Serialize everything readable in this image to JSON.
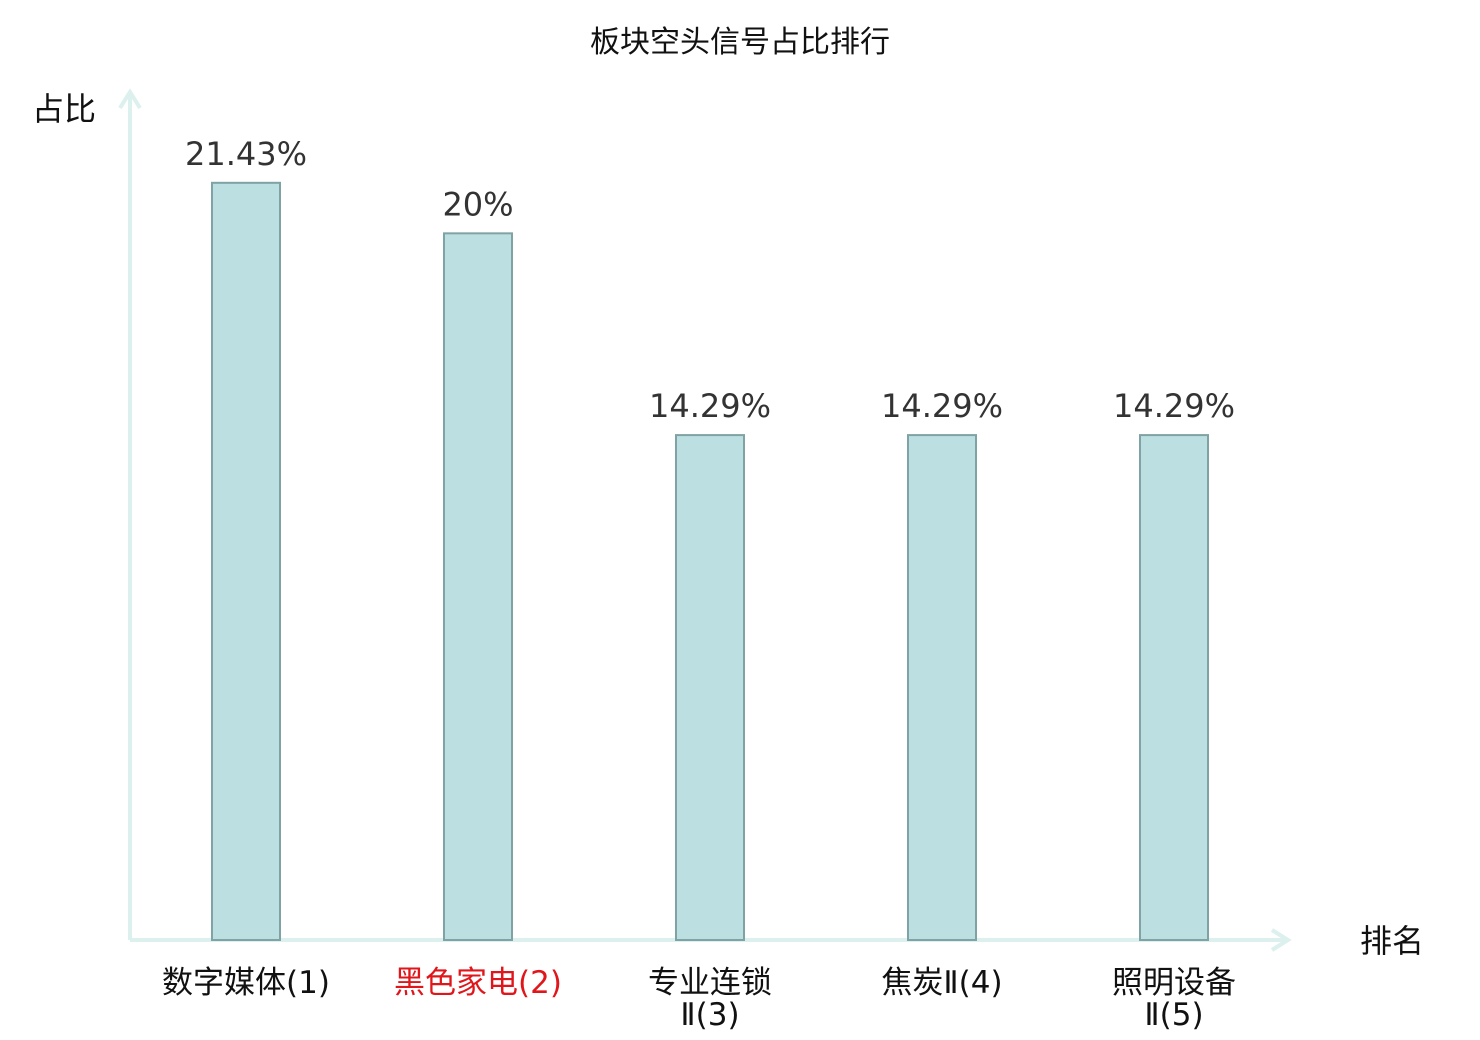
{
  "chart_data": {
    "type": "bar",
    "title": "板块空头信号占比排行",
    "ylabel": "占比",
    "xlabel": "排名",
    "ylim": [
      0,
      0.24
    ],
    "grid": false,
    "categories": [
      {
        "lines": [
          "数字媒体(1)"
        ],
        "highlight": false
      },
      {
        "lines": [
          "黑色家电(2)"
        ],
        "highlight": true
      },
      {
        "lines": [
          "专业连锁",
          "Ⅱ(3)"
        ],
        "highlight": false
      },
      {
        "lines": [
          "焦炭Ⅱ(4)"
        ],
        "highlight": false
      },
      {
        "lines": [
          "照明设备",
          "Ⅱ(5)"
        ],
        "highlight": false
      }
    ],
    "values": [
      0.2143,
      0.2,
      0.1429,
      0.1429,
      0.1429
    ],
    "value_labels": [
      "21.43%",
      "20%",
      "14.29%",
      "14.29%",
      "14.29%"
    ],
    "colors": {
      "bar_fill": "#bce0e1",
      "bar_stroke": "#7fa3a4",
      "axis": "#dcf0ee",
      "highlight_text": "#e0161b",
      "text": "#111111"
    }
  }
}
